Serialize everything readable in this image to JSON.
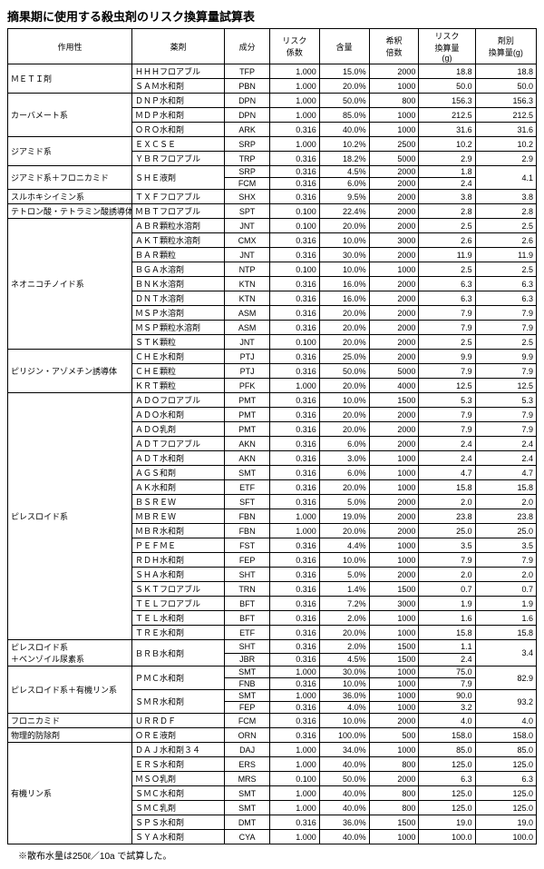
{
  "title": "摘果期に使用する殺虫剤のリスク換算量試算表",
  "footnote": "※散布水量は250ℓ／10a で試算した。",
  "headers": [
    "作用性",
    "薬剤",
    "成分",
    "リスク\n係数",
    "含量",
    "希釈\n倍数",
    "リスク\n換算量\n(g)",
    "剤別\n換算量(g)"
  ],
  "groups": [
    {
      "cat": "ＭＥＴＩ剤",
      "rows": [
        {
          "d": "ＨＨＨフロアブル",
          "c": "TFP",
          "k": "1.000",
          "g": "15.0%",
          "b": "2000",
          "r": "18.8",
          "z": "18.8"
        },
        {
          "d": "ＳＡＭ水和剤",
          "c": "PBN",
          "k": "1.000",
          "g": "20.0%",
          "b": "1000",
          "r": "50.0",
          "z": "50.0"
        }
      ]
    },
    {
      "cat": "カーバメート系",
      "rows": [
        {
          "d": "ＤＮＰ水和剤",
          "c": "DPN",
          "k": "1.000",
          "g": "50.0%",
          "b": "800",
          "r": "156.3",
          "z": "156.3"
        },
        {
          "d": "ＭＤＰ水和剤",
          "c": "DPN",
          "k": "1.000",
          "g": "85.0%",
          "b": "1000",
          "r": "212.5",
          "z": "212.5"
        },
        {
          "d": "ＯＲＯ水和剤",
          "c": "ARK",
          "k": "0.316",
          "g": "40.0%",
          "b": "1000",
          "r": "31.6",
          "z": "31.6"
        }
      ]
    },
    {
      "cat": "ジアミド系",
      "rows": [
        {
          "d": "ＥＸＣＳＥ",
          "c": "SRP",
          "k": "1.000",
          "g": "10.2%",
          "b": "2500",
          "r": "10.2",
          "z": "10.2"
        },
        {
          "d": "ＹＢＲフロアブル",
          "c": "TRP",
          "k": "0.316",
          "g": "18.2%",
          "b": "5000",
          "r": "2.9",
          "z": "2.9"
        }
      ]
    },
    {
      "cat": "ジアミド系＋フロニカミド",
      "rows": [
        {
          "d": "ＳＨＥ液剤",
          "c": "SRP",
          "k": "0.316",
          "g": "4.5%",
          "b": "2000",
          "r": "1.8",
          "z": "4.1",
          "zspan": 2
        },
        {
          "d": "",
          "c": "FCM",
          "k": "0.316",
          "g": "6.0%",
          "b": "2000",
          "r": "2.4"
        }
      ]
    },
    {
      "cat": "スルホキシイミン系",
      "rows": [
        {
          "d": "ＴＸＦフロアブル",
          "c": "SHX",
          "k": "0.316",
          "g": "9.5%",
          "b": "2000",
          "r": "3.8",
          "z": "3.8"
        }
      ]
    },
    {
      "cat": "テトロン酸・テトラミン酸誘導体",
      "rows": [
        {
          "d": "ＭＢＴフロアブル",
          "c": "SPT",
          "k": "0.100",
          "g": "22.4%",
          "b": "2000",
          "r": "2.8",
          "z": "2.8"
        }
      ]
    },
    {
      "cat": "ネオニコチノイド系",
      "rows": [
        {
          "d": "ＡＢＲ顆粒水溶剤",
          "c": "JNT",
          "k": "0.100",
          "g": "20.0%",
          "b": "2000",
          "r": "2.5",
          "z": "2.5"
        },
        {
          "d": "ＡＫＴ顆粒水溶剤",
          "c": "CMX",
          "k": "0.316",
          "g": "10.0%",
          "b": "3000",
          "r": "2.6",
          "z": "2.6"
        },
        {
          "d": "ＢＡＲ顆粒",
          "c": "JNT",
          "k": "0.316",
          "g": "30.0%",
          "b": "2000",
          "r": "11.9",
          "z": "11.9"
        },
        {
          "d": "ＢＧＡ水溶剤",
          "c": "NTP",
          "k": "0.100",
          "g": "10.0%",
          "b": "1000",
          "r": "2.5",
          "z": "2.5"
        },
        {
          "d": "ＢＮＫ水溶剤",
          "c": "KTN",
          "k": "0.316",
          "g": "16.0%",
          "b": "2000",
          "r": "6.3",
          "z": "6.3"
        },
        {
          "d": "ＤＮＴ水溶剤",
          "c": "KTN",
          "k": "0.316",
          "g": "16.0%",
          "b": "2000",
          "r": "6.3",
          "z": "6.3"
        },
        {
          "d": "ＭＳＰ水溶剤",
          "c": "ASM",
          "k": "0.316",
          "g": "20.0%",
          "b": "2000",
          "r": "7.9",
          "z": "7.9"
        },
        {
          "d": "ＭＳＰ顆粒水溶剤",
          "c": "ASM",
          "k": "0.316",
          "g": "20.0%",
          "b": "2000",
          "r": "7.9",
          "z": "7.9"
        },
        {
          "d": "ＳＴＫ顆粒",
          "c": "JNT",
          "k": "0.100",
          "g": "20.0%",
          "b": "2000",
          "r": "2.5",
          "z": "2.5"
        }
      ]
    },
    {
      "cat": "ピリジン・アゾメチン誘導体",
      "rows": [
        {
          "d": "ＣＨＥ水和剤",
          "c": "PTJ",
          "k": "0.316",
          "g": "25.0%",
          "b": "2000",
          "r": "9.9",
          "z": "9.9"
        },
        {
          "d": "ＣＨＥ顆粒",
          "c": "PTJ",
          "k": "0.316",
          "g": "50.0%",
          "b": "5000",
          "r": "7.9",
          "z": "7.9"
        },
        {
          "d": "ＫＲＴ顆粒",
          "c": "PFK",
          "k": "1.000",
          "g": "20.0%",
          "b": "4000",
          "r": "12.5",
          "z": "12.5"
        }
      ]
    },
    {
      "cat": "ピレスロイド系",
      "rows": [
        {
          "d": "ＡＤＯフロアブル",
          "c": "PMT",
          "k": "0.316",
          "g": "10.0%",
          "b": "1500",
          "r": "5.3",
          "z": "5.3"
        },
        {
          "d": "ＡＤＯ水和剤",
          "c": "PMT",
          "k": "0.316",
          "g": "20.0%",
          "b": "2000",
          "r": "7.9",
          "z": "7.9"
        },
        {
          "d": "ＡＤＯ乳剤",
          "c": "PMT",
          "k": "0.316",
          "g": "20.0%",
          "b": "2000",
          "r": "7.9",
          "z": "7.9"
        },
        {
          "d": "ＡＤＴフロアブル",
          "c": "AKN",
          "k": "0.316",
          "g": "6.0%",
          "b": "2000",
          "r": "2.4",
          "z": "2.4"
        },
        {
          "d": "ＡＤＴ水和剤",
          "c": "AKN",
          "k": "0.316",
          "g": "3.0%",
          "b": "1000",
          "r": "2.4",
          "z": "2.4"
        },
        {
          "d": "ＡＧＳ和剤",
          "c": "SMT",
          "k": "0.316",
          "g": "6.0%",
          "b": "1000",
          "r": "4.7",
          "z": "4.7"
        },
        {
          "d": "ＡＫ水和剤",
          "c": "ETF",
          "k": "0.316",
          "g": "20.0%",
          "b": "1000",
          "r": "15.8",
          "z": "15.8"
        },
        {
          "d": "ＢＳＲＥＷ",
          "c": "SFT",
          "k": "0.316",
          "g": "5.0%",
          "b": "2000",
          "r": "2.0",
          "z": "2.0"
        },
        {
          "d": "ＭＢＲＥＷ",
          "c": "FBN",
          "k": "1.000",
          "g": "19.0%",
          "b": "2000",
          "r": "23.8",
          "z": "23.8"
        },
        {
          "d": "ＭＢＲ水和剤",
          "c": "FBN",
          "k": "1.000",
          "g": "20.0%",
          "b": "2000",
          "r": "25.0",
          "z": "25.0"
        },
        {
          "d": "ＰＥＦＭＥ",
          "c": "FST",
          "k": "0.316",
          "g": "4.4%",
          "b": "1000",
          "r": "3.5",
          "z": "3.5"
        },
        {
          "d": "ＲＤＨ水和剤",
          "c": "FEP",
          "k": "0.316",
          "g": "10.0%",
          "b": "1000",
          "r": "7.9",
          "z": "7.9"
        },
        {
          "d": "ＳＨＡ水和剤",
          "c": "SHT",
          "k": "0.316",
          "g": "5.0%",
          "b": "2000",
          "r": "2.0",
          "z": "2.0"
        },
        {
          "d": "ＳＫＴフロアブル",
          "c": "TRN",
          "k": "0.316",
          "g": "1.4%",
          "b": "1500",
          "r": "0.7",
          "z": "0.7"
        },
        {
          "d": "ＴＥＬフロアブル",
          "c": "BFT",
          "k": "0.316",
          "g": "7.2%",
          "b": "3000",
          "r": "1.9",
          "z": "1.9"
        },
        {
          "d": "ＴＥＬ水和剤",
          "c": "BFT",
          "k": "0.316",
          "g": "2.0%",
          "b": "1000",
          "r": "1.6",
          "z": "1.6"
        },
        {
          "d": "ＴＲＥ水和剤",
          "c": "ETF",
          "k": "0.316",
          "g": "20.0%",
          "b": "1000",
          "r": "15.8",
          "z": "15.8"
        }
      ]
    },
    {
      "cat": "ピレスロイド系\n＋ベンゾイル尿素系",
      "rows": [
        {
          "d": "ＢＲＢ水和剤",
          "c": "SHT",
          "k": "0.316",
          "g": "2.0%",
          "b": "1500",
          "r": "1.1",
          "z": "3.4",
          "zspan": 2
        },
        {
          "d": "",
          "c": "JBR",
          "k": "0.316",
          "g": "4.5%",
          "b": "1500",
          "r": "2.4"
        }
      ]
    },
    {
      "cat": "ピレスロイド系＋有機リン系",
      "rows": [
        {
          "d": "ＰＭＣ水和剤",
          "c": "SMT",
          "k": "1.000",
          "g": "30.0%",
          "b": "1000",
          "r": "75.0",
          "z": "82.9",
          "zspan": 2
        },
        {
          "d": "",
          "c": "FNB",
          "k": "0.316",
          "g": "10.0%",
          "b": "1000",
          "r": "7.9"
        },
        {
          "d": "ＳＭＲ水和剤",
          "c": "SMT",
          "k": "1.000",
          "g": "36.0%",
          "b": "1000",
          "r": "90.0",
          "z": "93.2",
          "zspan": 2
        },
        {
          "d": "",
          "c": "FEP",
          "k": "0.316",
          "g": "4.0%",
          "b": "1000",
          "r": "3.2"
        }
      ]
    },
    {
      "cat": "フロニカミド",
      "rows": [
        {
          "d": "ＵＲＲＤＦ",
          "c": "FCM",
          "k": "0.316",
          "g": "10.0%",
          "b": "2000",
          "r": "4.0",
          "z": "4.0"
        }
      ]
    },
    {
      "cat": "物理的防除剤",
      "rows": [
        {
          "d": "ＯＲＥ液剤",
          "c": "ORN",
          "k": "0.316",
          "g": "100.0%",
          "b": "500",
          "r": "158.0",
          "z": "158.0"
        }
      ]
    },
    {
      "cat": "有機リン系",
      "rows": [
        {
          "d": "ＤＡＪ水和剤３４",
          "c": "DAJ",
          "k": "1.000",
          "g": "34.0%",
          "b": "1000",
          "r": "85.0",
          "z": "85.0"
        },
        {
          "d": "ＥＲＳ水和剤",
          "c": "ERS",
          "k": "1.000",
          "g": "40.0%",
          "b": "800",
          "r": "125.0",
          "z": "125.0"
        },
        {
          "d": "ＭＳＯ乳剤",
          "c": "MRS",
          "k": "0.100",
          "g": "50.0%",
          "b": "2000",
          "r": "6.3",
          "z": "6.3"
        },
        {
          "d": "ＳＭＣ水和剤",
          "c": "SMT",
          "k": "1.000",
          "g": "40.0%",
          "b": "800",
          "r": "125.0",
          "z": "125.0"
        },
        {
          "d": "ＳＭＣ乳剤",
          "c": "SMT",
          "k": "1.000",
          "g": "40.0%",
          "b": "800",
          "r": "125.0",
          "z": "125.0"
        },
        {
          "d": "ＳＰＳ水和剤",
          "c": "DMT",
          "k": "0.316",
          "g": "36.0%",
          "b": "1500",
          "r": "19.0",
          "z": "19.0"
        },
        {
          "d": "ＳＹＡ水和剤",
          "c": "CYA",
          "k": "1.000",
          "g": "40.0%",
          "b": "1000",
          "r": "100.0",
          "z": "100.0"
        }
      ]
    }
  ]
}
